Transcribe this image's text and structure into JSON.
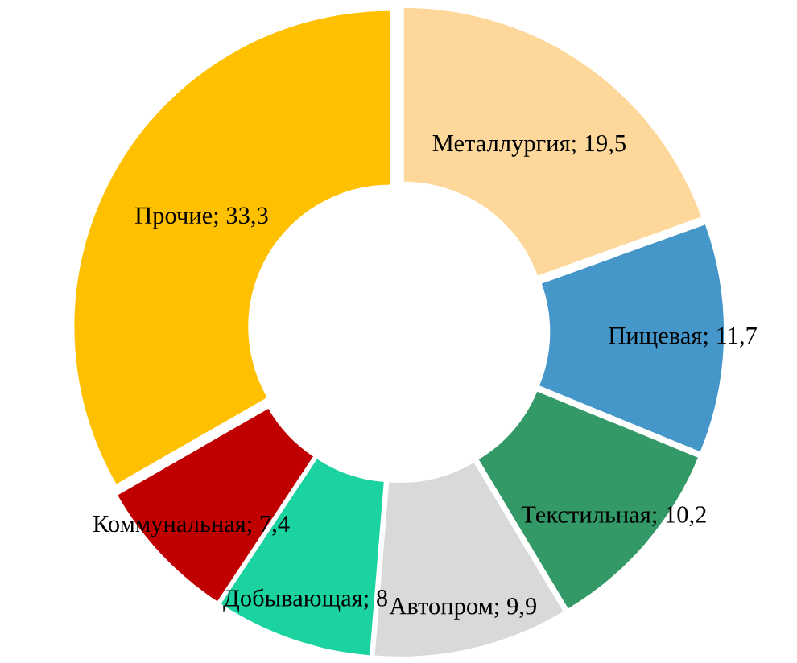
{
  "chart_data": {
    "type": "donut",
    "categories": [
      "Металлургия",
      "Пищевая",
      "Текстильная",
      "Автопром",
      "Добывающая",
      "Коммунальная",
      "Прочие"
    ],
    "values": [
      19.5,
      11.7,
      10.2,
      9.9,
      8,
      7.4,
      33.3
    ],
    "value_labels": [
      "19,5",
      "11,7",
      "10,2",
      "9,9",
      "8",
      "7,4",
      "33,3"
    ],
    "colors": [
      "#fdd89a",
      "#4597c9",
      "#339966",
      "#d9d9d9",
      "#1ad3a0",
      "#c00000",
      "#ffc000"
    ],
    "legend": false
  }
}
